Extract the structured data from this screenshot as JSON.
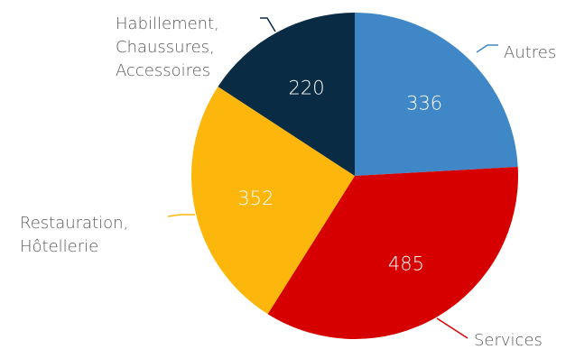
{
  "chart_data": {
    "type": "pie",
    "start_angle_deg": 0,
    "direction": "clockwise",
    "slices": [
      {
        "label": [
          "Autres"
        ],
        "value": 336,
        "color": "#3f87c6"
      },
      {
        "label": [
          "Services"
        ],
        "value": 485,
        "color": "#d60000"
      },
      {
        "label": [
          "Restauration,",
          "Hôtellerie"
        ],
        "value": 352,
        "color": "#fdb60c"
      },
      {
        "label": [
          "Habillement,",
          "Chaussures,",
          "Accessoires"
        ],
        "value": 220,
        "color": "#0a2b44"
      }
    ]
  }
}
